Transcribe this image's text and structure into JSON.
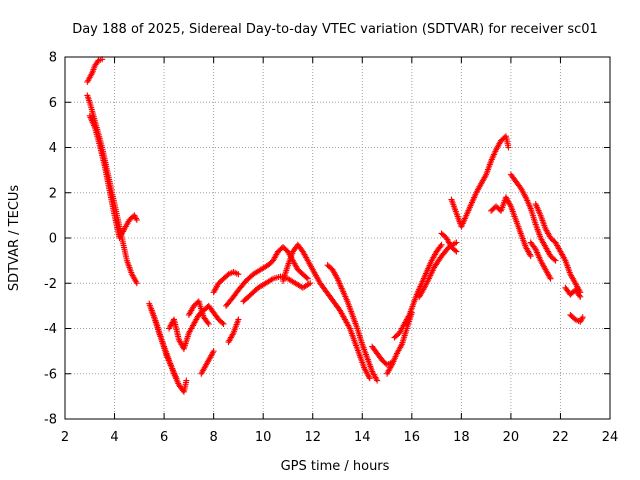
{
  "chart_data": {
    "type": "scatter",
    "title": "Day 188 of 2025, Sidereal Day-to-day VTEC variation (SDTVAR) for receiver sc01",
    "xlabel": "GPS time / hours",
    "ylabel": "SDTVAR / TECUs",
    "xlim": [
      2,
      24
    ],
    "ylim": [
      -8,
      8
    ],
    "xticks": [
      2,
      4,
      6,
      8,
      10,
      12,
      14,
      16,
      18,
      20,
      22,
      24
    ],
    "yticks": [
      -8,
      -6,
      -4,
      -2,
      0,
      2,
      4,
      6,
      8
    ],
    "grid": true,
    "marker": "+",
    "marker_color": "#ff0000",
    "series": [
      {
        "name": "sc01",
        "trend": [
          [
            2.9,
            6.9
          ],
          [
            3.0,
            7.1
          ],
          [
            3.1,
            7.3
          ],
          [
            3.2,
            7.6
          ],
          [
            3.35,
            7.85
          ],
          [
            3.5,
            7.9
          ],
          [
            2.9,
            6.3
          ],
          [
            3.0,
            6.0
          ],
          [
            3.1,
            5.6
          ],
          [
            3.2,
            5.2
          ],
          [
            3.3,
            4.8
          ],
          [
            3.4,
            4.4
          ],
          [
            3.5,
            4.0
          ],
          [
            3.6,
            3.5
          ],
          [
            3.7,
            3.0
          ],
          [
            3.8,
            2.5
          ],
          [
            3.9,
            2.0
          ],
          [
            4.0,
            1.5
          ],
          [
            4.1,
            1.0
          ],
          [
            4.2,
            0.5
          ],
          [
            4.3,
            0.0
          ],
          [
            4.4,
            -0.5
          ],
          [
            4.5,
            -1.0
          ],
          [
            4.6,
            -1.3
          ],
          [
            4.7,
            -1.6
          ],
          [
            4.8,
            -1.8
          ],
          [
            4.9,
            -2.0
          ],
          [
            3.0,
            5.4
          ],
          [
            3.2,
            4.9
          ],
          [
            3.4,
            4.1
          ],
          [
            3.6,
            3.2
          ],
          [
            3.8,
            2.1
          ],
          [
            4.0,
            1.0
          ],
          [
            4.2,
            0.0
          ],
          [
            4.6,
            0.8
          ],
          [
            4.8,
            1.0
          ],
          [
            4.9,
            0.8
          ],
          [
            5.4,
            -2.9
          ],
          [
            5.6,
            -3.5
          ],
          [
            5.8,
            -4.2
          ],
          [
            6.0,
            -4.8
          ],
          [
            6.2,
            -5.4
          ],
          [
            6.4,
            -6.0
          ],
          [
            6.6,
            -6.5
          ],
          [
            6.8,
            -6.8
          ],
          [
            6.9,
            -6.3
          ],
          [
            5.5,
            -3.2
          ],
          [
            5.7,
            -3.8
          ],
          [
            5.9,
            -4.5
          ],
          [
            6.1,
            -5.2
          ],
          [
            6.3,
            -5.7
          ],
          [
            6.5,
            -6.2
          ],
          [
            6.2,
            -4.0
          ],
          [
            6.4,
            -3.6
          ],
          [
            6.6,
            -4.5
          ],
          [
            6.8,
            -4.9
          ],
          [
            7.0,
            -4.2
          ],
          [
            7.2,
            -3.8
          ],
          [
            7.4,
            -3.4
          ],
          [
            7.6,
            -3.2
          ],
          [
            7.8,
            -3.0
          ],
          [
            8.0,
            -3.3
          ],
          [
            8.2,
            -3.6
          ],
          [
            8.4,
            -3.8
          ],
          [
            7.0,
            -3.4
          ],
          [
            7.2,
            -3.0
          ],
          [
            7.4,
            -2.8
          ],
          [
            7.6,
            -3.5
          ],
          [
            7.8,
            -3.8
          ],
          [
            7.5,
            -6.0
          ],
          [
            7.7,
            -5.6
          ],
          [
            7.9,
            -5.2
          ],
          [
            8.0,
            -5.0
          ],
          [
            8.0,
            -2.4
          ],
          [
            8.2,
            -2.0
          ],
          [
            8.4,
            -1.8
          ],
          [
            8.6,
            -1.6
          ],
          [
            8.8,
            -1.5
          ],
          [
            9.0,
            -1.6
          ],
          [
            8.6,
            -4.6
          ],
          [
            8.8,
            -4.2
          ],
          [
            9.0,
            -3.6
          ],
          [
            8.5,
            -3.0
          ],
          [
            8.8,
            -2.6
          ],
          [
            9.0,
            -2.3
          ],
          [
            9.3,
            -1.9
          ],
          [
            9.6,
            -1.6
          ],
          [
            9.9,
            -1.4
          ],
          [
            10.2,
            -1.2
          ],
          [
            10.4,
            -1.0
          ],
          [
            10.6,
            -0.6
          ],
          [
            10.8,
            -0.4
          ],
          [
            11.0,
            -0.6
          ],
          [
            11.2,
            -1.0
          ],
          [
            11.4,
            -1.4
          ],
          [
            11.6,
            -1.6
          ],
          [
            11.8,
            -1.8
          ],
          [
            9.2,
            -2.8
          ],
          [
            9.5,
            -2.5
          ],
          [
            9.8,
            -2.2
          ],
          [
            10.1,
            -2.0
          ],
          [
            10.4,
            -1.8
          ],
          [
            10.7,
            -1.7
          ],
          [
            11.0,
            -1.8
          ],
          [
            11.3,
            -2.0
          ],
          [
            11.6,
            -2.2
          ],
          [
            11.9,
            -2.0
          ],
          [
            10.8,
            -1.9
          ],
          [
            11.0,
            -1.2
          ],
          [
            11.2,
            -0.6
          ],
          [
            11.4,
            -0.3
          ],
          [
            11.6,
            -0.6
          ],
          [
            11.8,
            -1.0
          ],
          [
            12.1,
            -1.6
          ],
          [
            12.3,
            -2.0
          ],
          [
            12.5,
            -2.3
          ],
          [
            12.7,
            -2.6
          ],
          [
            12.9,
            -2.9
          ],
          [
            13.1,
            -3.2
          ],
          [
            13.3,
            -3.6
          ],
          [
            13.5,
            -4.0
          ],
          [
            13.7,
            -4.6
          ],
          [
            13.9,
            -5.2
          ],
          [
            14.1,
            -5.8
          ],
          [
            14.3,
            -6.2
          ],
          [
            12.6,
            -1.2
          ],
          [
            12.8,
            -1.4
          ],
          [
            13.0,
            -1.8
          ],
          [
            13.2,
            -2.3
          ],
          [
            13.4,
            -2.8
          ],
          [
            13.6,
            -3.4
          ],
          [
            13.8,
            -4.0
          ],
          [
            14.0,
            -4.7
          ],
          [
            14.2,
            -5.3
          ],
          [
            14.4,
            -5.9
          ],
          [
            14.6,
            -6.3
          ],
          [
            14.4,
            -4.8
          ],
          [
            14.6,
            -5.1
          ],
          [
            14.8,
            -5.4
          ],
          [
            15.0,
            -5.6
          ],
          [
            15.2,
            -5.5
          ],
          [
            15.0,
            -6.0
          ],
          [
            15.2,
            -5.6
          ],
          [
            15.4,
            -5.1
          ],
          [
            15.6,
            -4.7
          ],
          [
            15.8,
            -4.0
          ],
          [
            16.0,
            -3.3
          ],
          [
            15.3,
            -4.4
          ],
          [
            15.5,
            -4.2
          ],
          [
            15.7,
            -3.8
          ],
          [
            15.9,
            -3.4
          ],
          [
            16.2,
            -2.5
          ],
          [
            16.4,
            -2.0
          ],
          [
            16.6,
            -1.5
          ],
          [
            16.8,
            -1.0
          ],
          [
            17.0,
            -0.6
          ],
          [
            17.2,
            -0.3
          ],
          [
            16.3,
            -2.6
          ],
          [
            16.6,
            -2.0
          ],
          [
            16.9,
            -1.3
          ],
          [
            17.2,
            -0.8
          ],
          [
            17.5,
            -0.4
          ],
          [
            17.8,
            -0.2
          ],
          [
            17.2,
            0.2
          ],
          [
            17.4,
            0.0
          ],
          [
            17.6,
            -0.4
          ],
          [
            17.8,
            -0.6
          ],
          [
            17.6,
            1.7
          ],
          [
            18.0,
            0.5
          ],
          [
            18.2,
            1.0
          ],
          [
            18.4,
            1.5
          ],
          [
            18.6,
            2.0
          ],
          [
            18.8,
            2.4
          ],
          [
            19.0,
            2.8
          ],
          [
            19.2,
            3.4
          ],
          [
            19.4,
            3.9
          ],
          [
            19.6,
            4.3
          ],
          [
            19.8,
            4.5
          ],
          [
            19.9,
            4.0
          ],
          [
            19.2,
            1.2
          ],
          [
            19.4,
            1.4
          ],
          [
            19.6,
            1.2
          ],
          [
            19.8,
            1.8
          ],
          [
            20.0,
            1.4
          ],
          [
            20.2,
            0.8
          ],
          [
            20.4,
            0.2
          ],
          [
            20.6,
            -0.4
          ],
          [
            20.8,
            -0.8
          ],
          [
            20.0,
            2.8
          ],
          [
            20.2,
            2.5
          ],
          [
            20.4,
            2.2
          ],
          [
            20.6,
            1.8
          ],
          [
            20.8,
            1.3
          ],
          [
            21.0,
            0.6
          ],
          [
            21.2,
            0.0
          ],
          [
            21.4,
            -0.4
          ],
          [
            21.6,
            -0.8
          ],
          [
            21.8,
            -1.0
          ],
          [
            20.8,
            -0.2
          ],
          [
            21.0,
            -0.5
          ],
          [
            21.2,
            -1.0
          ],
          [
            21.4,
            -1.4
          ],
          [
            21.6,
            -1.8
          ],
          [
            21.0,
            1.5
          ],
          [
            21.2,
            1.0
          ],
          [
            21.4,
            0.4
          ],
          [
            21.6,
            0.0
          ],
          [
            21.8,
            -0.2
          ],
          [
            22.0,
            -0.6
          ],
          [
            22.2,
            -1.0
          ],
          [
            22.4,
            -1.6
          ],
          [
            22.6,
            -2.0
          ],
          [
            22.8,
            -2.4
          ],
          [
            22.2,
            -2.2
          ],
          [
            22.4,
            -2.5
          ],
          [
            22.6,
            -2.3
          ],
          [
            22.8,
            -2.6
          ],
          [
            22.4,
            -3.4
          ],
          [
            22.6,
            -3.6
          ],
          [
            22.8,
            -3.7
          ],
          [
            22.9,
            -3.5
          ]
        ]
      }
    ]
  }
}
